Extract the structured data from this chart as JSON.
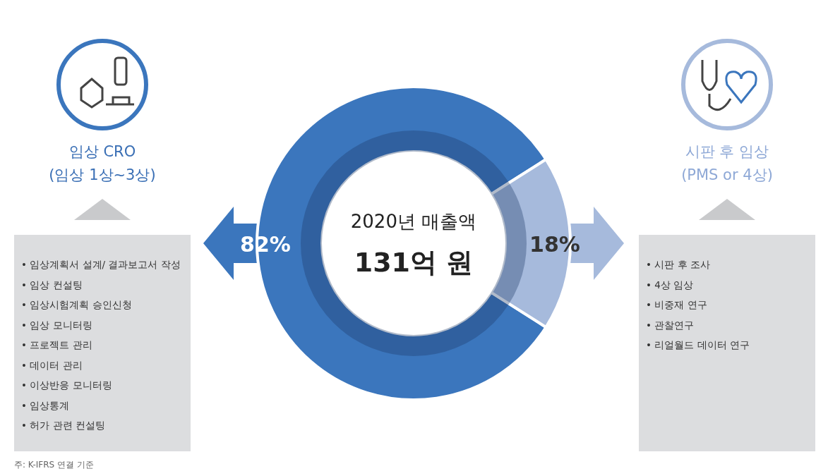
{
  "chart_data": {
    "type": "donut",
    "title": "2020년 매출액",
    "subtitle": "131억 원",
    "categories": [
      "임상 CRO\n(임상 1상~3상)",
      "시판 후 임상\n(PMS or 4상)"
    ],
    "values": [
      82,
      18
    ],
    "colors": [
      "#3b76bd",
      "#a6badc"
    ],
    "value_labels": [
      "82%",
      "18%"
    ],
    "annotations": [
      "• 임상계획서 설계/ 결과보고서 작성\n• 임상 컨설팅\n• 임상시험계획 승인신청\n• 임상 모니터링\n• 프로젝트 관리\n• 데이터 관리\n• 이상반응 모니터링\n• 임상통계\n• 허가 관련 컨설팅",
      "• 시판 후 조사\n• 4상 임상\n• 비중재 연구\n• 관찰연구\n• 리얼월드 데이터 연구",
      "주: K-IFRS 연결 기준"
    ]
  }
}
